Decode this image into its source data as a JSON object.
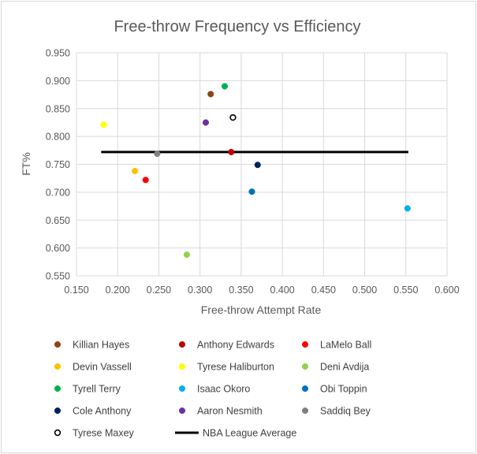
{
  "chart_data": {
    "type": "scatter",
    "title": "Free-throw Frequency vs Efficiency",
    "xlabel": "Free-throw Attempt Rate",
    "ylabel": "FT%",
    "xlim": [
      0.15,
      0.6
    ],
    "ylim": [
      0.55,
      0.95
    ],
    "x_ticks": [
      "0.150",
      "0.200",
      "0.250",
      "0.300",
      "0.350",
      "0.400",
      "0.450",
      "0.500",
      "0.550",
      "0.600"
    ],
    "y_ticks": [
      "0.550",
      "0.600",
      "0.650",
      "0.700",
      "0.750",
      "0.800",
      "0.850",
      "0.900",
      "0.950"
    ],
    "grid": true,
    "legend_position": "bottom",
    "series": [
      {
        "name": "Killian Hayes",
        "x": 0.313,
        "y": 0.876,
        "color": "#8B4513",
        "marker": "filled"
      },
      {
        "name": "Anthony Edwards",
        "x": 0.338,
        "y": 0.772,
        "color": "#C00000",
        "marker": "filled"
      },
      {
        "name": "LaMelo Ball",
        "x": 0.234,
        "y": 0.722,
        "color": "#FF0000",
        "marker": "filled"
      },
      {
        "name": "Devin Vassell",
        "x": 0.221,
        "y": 0.738,
        "color": "#FFC000",
        "marker": "filled"
      },
      {
        "name": "Tyrese Haliburton",
        "x": 0.183,
        "y": 0.821,
        "color": "#FFFF00",
        "marker": "filled"
      },
      {
        "name": "Deni Avdija",
        "x": 0.284,
        "y": 0.588,
        "color": "#92D050",
        "marker": "filled"
      },
      {
        "name": "Tyrell Terry",
        "x": 0.33,
        "y": 0.89,
        "color": "#00B050",
        "marker": "filled"
      },
      {
        "name": "Isaac Okoro",
        "x": 0.552,
        "y": 0.671,
        "color": "#00B0F0",
        "marker": "filled"
      },
      {
        "name": "Obi Toppin",
        "x": 0.363,
        "y": 0.701,
        "color": "#0070C0",
        "marker": "filled"
      },
      {
        "name": "Cole Anthony",
        "x": 0.37,
        "y": 0.749,
        "color": "#002060",
        "marker": "filled"
      },
      {
        "name": "Aaron Nesmith",
        "x": 0.307,
        "y": 0.825,
        "color": "#7030A0",
        "marker": "filled"
      },
      {
        "name": "Saddiq Bey",
        "x": 0.248,
        "y": 0.769,
        "color": "#808080",
        "marker": "filled"
      },
      {
        "name": "Tyrese Maxey",
        "x": 0.34,
        "y": 0.834,
        "color": "#000000",
        "marker": "hollow"
      }
    ],
    "reference_line": {
      "name": "NBA League Average",
      "y": 0.772,
      "x_start": 0.18,
      "x_end": 0.553,
      "color": "#000000"
    }
  }
}
